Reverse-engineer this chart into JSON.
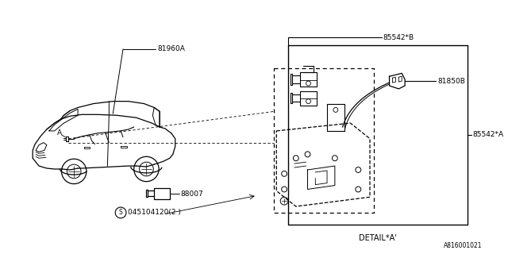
{
  "bg_color": "#ffffff",
  "line_color": "#000000",
  "title": "DETAIL*A'",
  "diagram_id": "A816001021",
  "label_81960A": "81960A",
  "label_88007": "88007",
  "label_85542B": "85542*B",
  "label_81850B": "81850B",
  "label_85542A": "85542*A",
  "label_screw": "045104120(2 )",
  "label_A": "A"
}
